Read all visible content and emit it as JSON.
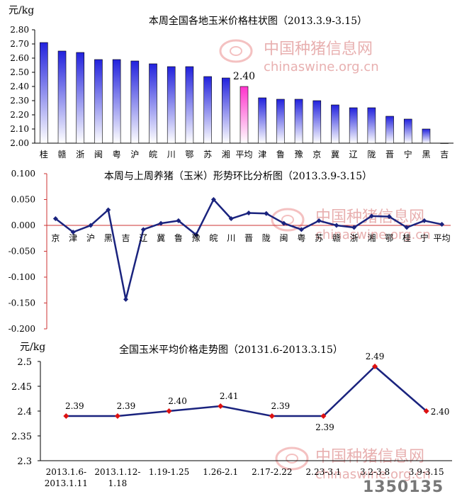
{
  "watermark": {
    "cn": "中国种猪信息网",
    "url": "chinaswine.org.cn",
    "corner_number": "1350135"
  },
  "chart_data": [
    {
      "type": "bar",
      "title": "本周全国各地玉米价格柱状图（2013.3.9-3.15）",
      "unit": "元/kg",
      "categories": [
        "桂",
        "赣",
        "浙",
        "闽",
        "粤",
        "沪",
        "皖",
        "川",
        "鄂",
        "苏",
        "湘",
        "平均",
        "津",
        "鲁",
        "豫",
        "京",
        "冀",
        "辽",
        "陇",
        "晋",
        "宁",
        "黑",
        "吉"
      ],
      "values": [
        2.71,
        2.65,
        2.64,
        2.59,
        2.59,
        2.58,
        2.56,
        2.54,
        2.54,
        2.47,
        2.46,
        2.4,
        2.32,
        2.31,
        2.31,
        2.3,
        2.27,
        2.25,
        2.25,
        2.19,
        2.17,
        2.1,
        2.0
      ],
      "highlight_index": 11,
      "highlight_label": "2.40",
      "ylim": [
        2.0,
        2.8
      ],
      "yticks": [
        "2.00",
        "2.10",
        "2.20",
        "2.30",
        "2.40",
        "2.50",
        "2.60",
        "2.70",
        "2.80"
      ],
      "colors": {
        "bar": "#2222dd",
        "bar_fade": "#ffffff",
        "highlight": "#ff33cc"
      }
    },
    {
      "type": "line",
      "title": "本周与上周养猪（玉米）形势环比分析图（2013.3.9-3.15）",
      "categories": [
        "京",
        "津",
        "沪",
        "黑",
        "吉",
        "辽",
        "冀",
        "鲁",
        "豫",
        "皖",
        "川",
        "晋",
        "陇",
        "闽",
        "粤",
        "苏",
        "赣",
        "浙",
        "湘",
        "鄂",
        "桂",
        "宁",
        "平均"
      ],
      "values": [
        0.013,
        -0.013,
        0.0,
        0.03,
        -0.143,
        -0.008,
        0.004,
        0.009,
        -0.018,
        0.05,
        0.013,
        0.024,
        0.023,
        0.004,
        -0.008,
        0.009,
        0.0,
        -0.004,
        0.018,
        0.017,
        -0.004,
        0.009,
        0.002
      ],
      "ylim": [
        -0.2,
        0.1
      ],
      "yticks": [
        "0.100",
        "0.050",
        "0.000",
        "-0.050",
        "-0.100",
        "-0.150",
        "-0.200"
      ],
      "colors": {
        "line": "#1a237e",
        "axis": "#cc3333"
      }
    },
    {
      "type": "line",
      "title": "全国玉米平均价格走势图（20131.6-2013.3.15）",
      "unit": "元/kg",
      "categories": [
        "2013.1.6-2013.1.11",
        "2013.1.12-1.18",
        "1.19-1.25",
        "1.26-2.1",
        "2.17-2.22",
        "2.23-3.1",
        "3.2-3.8",
        "3.9-3.15"
      ],
      "category_lines": [
        [
          "2013.1.6-",
          "2013.1.11"
        ],
        [
          "2013.1.12-",
          "1.18"
        ],
        [
          "1.19-1.25"
        ],
        [
          "1.26-2.1"
        ],
        [
          "2.17-2.22"
        ],
        [
          "2.23-3.1"
        ],
        [
          "3.2-3.8"
        ],
        [
          "3.9-3.15"
        ]
      ],
      "values": [
        2.39,
        2.39,
        2.4,
        2.41,
        2.39,
        2.39,
        2.49,
        2.4
      ],
      "data_labels": [
        "2.39",
        "2.39",
        "2.40",
        "2.41",
        "2.39",
        "2.39",
        "2.49",
        "2.40"
      ],
      "ylim": [
        2.3,
        2.5
      ],
      "yticks": [
        "2.5",
        "2.45",
        "2.4",
        "2.35",
        "2.3"
      ],
      "colors": {
        "line": "#1a237e",
        "marker": "#dd1111"
      }
    }
  ]
}
